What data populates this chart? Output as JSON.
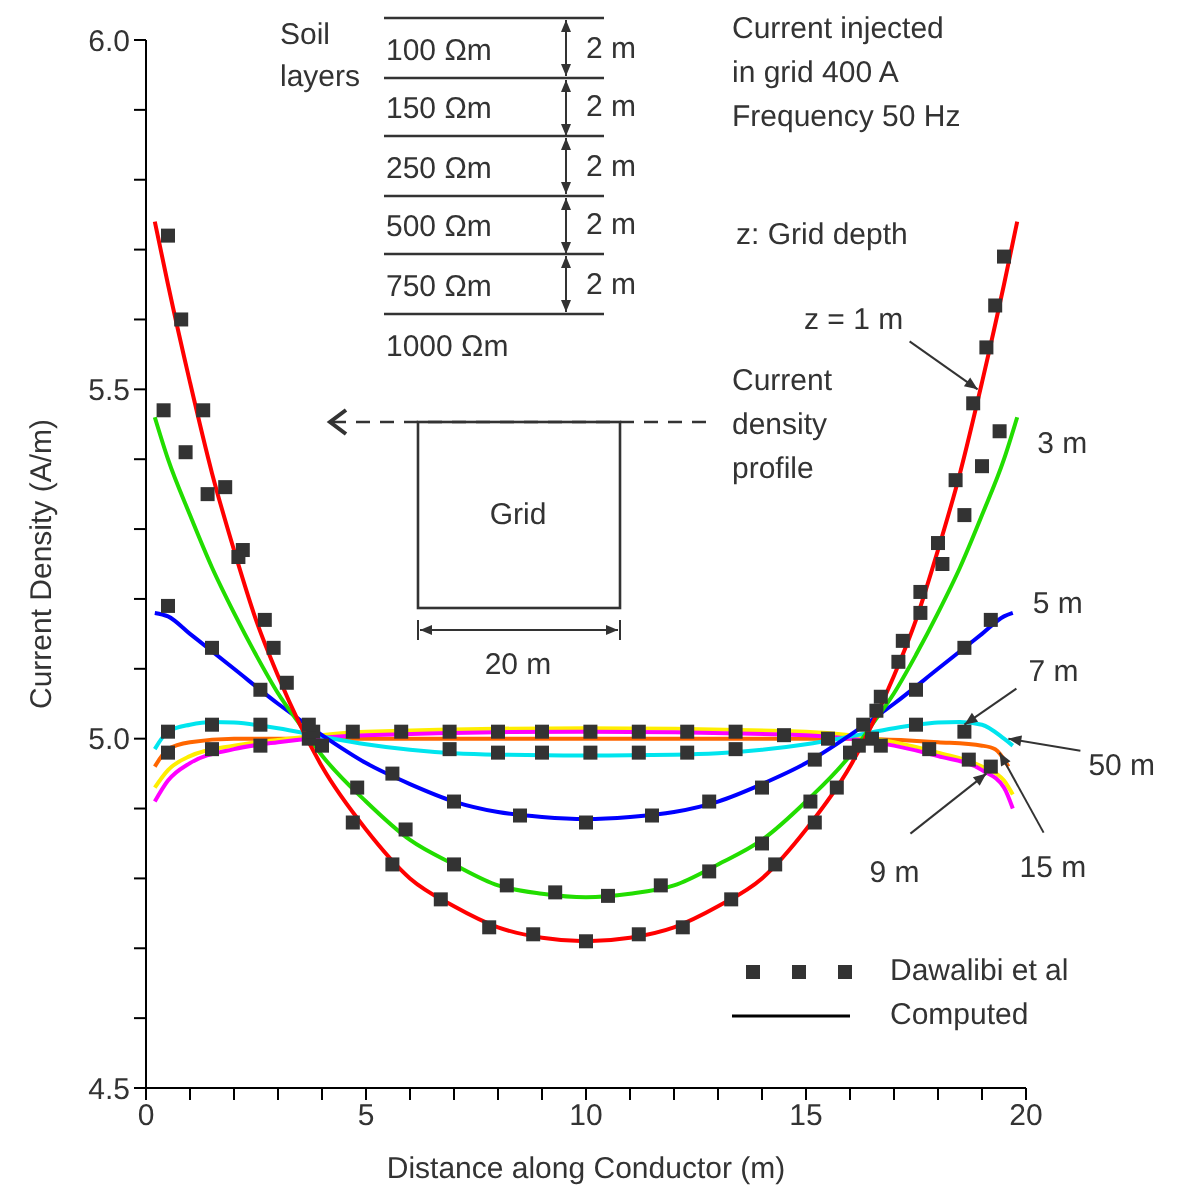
{
  "chart_data": {
    "type": "line",
    "xlabel": "Distance along Conductor (m)",
    "ylabel": "Current Density (A/m)",
    "xlim": [
      0,
      20
    ],
    "xticks": [
      0,
      {
        "value": 1,
        "label": null
      },
      {
        "value": 2,
        "label": null
      },
      {
        "value": 3,
        "label": null
      },
      {
        "value": 4,
        "label": null
      },
      5,
      {
        "value": 6,
        "label": null
      },
      {
        "value": 7,
        "label": null
      },
      {
        "value": 8,
        "label": null
      },
      {
        "value": 9,
        "label": null
      },
      10,
      {
        "value": 11,
        "label": null
      },
      {
        "value": 12,
        "label": null
      },
      {
        "value": 13,
        "label": null
      },
      {
        "value": 14,
        "label": null
      },
      15,
      {
        "value": 16,
        "label": null
      },
      {
        "value": 17,
        "label": null
      },
      {
        "value": 18,
        "label": null
      },
      {
        "value": 19,
        "label": null
      },
      20
    ],
    "ylim": [
      4.5,
      6.0
    ],
    "yticks": [
      4.5,
      {
        "value": 4.6,
        "label": null
      },
      {
        "value": 4.7,
        "label": null
      },
      {
        "value": 4.8,
        "label": null
      },
      {
        "value": 4.9,
        "label": null
      },
      {
        "value": 5,
        "label": "5.0"
      },
      {
        "value": 5.1,
        "label": null
      },
      {
        "value": 5.2,
        "label": null
      },
      {
        "value": 5.3,
        "label": null
      },
      {
        "value": 5.4,
        "label": null
      },
      5.5,
      {
        "value": 5.6,
        "label": null
      },
      {
        "value": 5.7,
        "label": null
      },
      {
        "value": 5.8,
        "label": null
      },
      {
        "value": 5.9,
        "label": null
      },
      {
        "value": 6,
        "label": "6.0"
      }
    ],
    "legend": "bottom right",
    "line_style": "solid",
    "series": [
      {
        "color": "#ff6600",
        "x": [
          0.2,
          0.5,
          1,
          2,
          4,
          10,
          16,
          18,
          19,
          19.3,
          19.6
        ],
        "values": [
          4.96,
          4.985,
          4.995,
          5.0,
          5.0,
          5.0,
          5.0,
          4.995,
          4.99,
          4.985,
          4.96
        ]
      },
      {
        "color": "#ffee00",
        "x": [
          0.2,
          0.5,
          1,
          2,
          3,
          5,
          10,
          15,
          17,
          18,
          19,
          19.5,
          19.7
        ],
        "values": [
          4.93,
          4.955,
          4.975,
          4.99,
          4.998,
          5.01,
          5.015,
          5.01,
          4.995,
          4.98,
          4.96,
          4.94,
          4.92
        ]
      },
      {
        "color": "#ff00ff",
        "x": [
          0.2,
          0.5,
          1,
          2,
          3,
          5,
          10,
          15,
          17,
          18,
          19,
          19.5,
          19.7
        ],
        "values": [
          4.91,
          4.94,
          4.965,
          4.985,
          4.995,
          5.005,
          5.01,
          5.005,
          4.99,
          4.975,
          4.955,
          4.93,
          4.9
        ]
      },
      {
        "color": "#00e5ee",
        "x": [
          0.2,
          0.5,
          1,
          1.5,
          2,
          3,
          4,
          5,
          6,
          7,
          8,
          10,
          12,
          13,
          14,
          15,
          16,
          17,
          18,
          18.5,
          19,
          19.5,
          19.7
        ],
        "values": [
          4.985,
          5.01,
          5.02,
          5.024,
          5.023,
          5.015,
          5.003,
          4.992,
          4.984,
          4.979,
          4.977,
          4.976,
          4.977,
          4.979,
          4.984,
          4.992,
          5.003,
          5.015,
          5.023,
          5.024,
          5.02,
          5.0,
          4.99
        ]
      },
      {
        "color": "#0000ff",
        "x": [
          0.2,
          0.5,
          1,
          2,
          3,
          4,
          5,
          6,
          7,
          8,
          9,
          10,
          11,
          12,
          13,
          14,
          15,
          16,
          17,
          18,
          19,
          19.5,
          19.7
        ],
        "values": [
          5.18,
          5.175,
          5.15,
          5.1,
          5.05,
          5.005,
          4.965,
          4.935,
          4.91,
          4.895,
          4.888,
          4.885,
          4.888,
          4.895,
          4.91,
          4.935,
          4.965,
          5.005,
          5.05,
          5.1,
          5.15,
          5.175,
          5.18
        ]
      },
      {
        "color": "#22dd00",
        "x": [
          0.2,
          0.5,
          1,
          1.5,
          2,
          2.5,
          3,
          3.5,
          4,
          5,
          6,
          7,
          8,
          9,
          10,
          11,
          12,
          13,
          14,
          15,
          16,
          16.5,
          17,
          17.5,
          18,
          18.5,
          19,
          19.5,
          19.8
        ],
        "values": [
          5.46,
          5.4,
          5.32,
          5.245,
          5.18,
          5.12,
          5.065,
          5.02,
          4.976,
          4.91,
          4.855,
          4.82,
          4.79,
          4.778,
          4.773,
          4.778,
          4.79,
          4.82,
          4.855,
          4.91,
          4.976,
          5.02,
          5.065,
          5.12,
          5.18,
          5.245,
          5.32,
          5.4,
          5.46
        ]
      },
      {
        "color": "#ff0000",
        "x": [
          0.2,
          0.5,
          1,
          1.5,
          2,
          2.5,
          3,
          3.5,
          4,
          5,
          6,
          7,
          8,
          9,
          10,
          11,
          12,
          13,
          14,
          15,
          16,
          16.5,
          17,
          17.5,
          18,
          18.5,
          19,
          19.5,
          19.8
        ],
        "values": [
          5.74,
          5.65,
          5.51,
          5.38,
          5.27,
          5.17,
          5.09,
          5.02,
          4.96,
          4.87,
          4.8,
          4.76,
          4.73,
          4.715,
          4.71,
          4.715,
          4.73,
          4.76,
          4.8,
          4.87,
          4.96,
          5.02,
          5.09,
          5.17,
          5.27,
          5.38,
          5.51,
          5.65,
          5.74
        ]
      },
      {
        "name": "Dawalibi et al",
        "type": "scatter",
        "marker": "square",
        "color": "#333333",
        "x": [
          0.5,
          0.8,
          1.3,
          1.8,
          2.2,
          2.7,
          3.2,
          3.7,
          4.7,
          5.6,
          6.7,
          7.8,
          8.8,
          10.0,
          11.2,
          12.2,
          13.3,
          14.3,
          15.2,
          15.7,
          16.2,
          16.7,
          17.2,
          17.6,
          18.0,
          18.4,
          18.8,
          19.1,
          19.3,
          19.5,
          0.4,
          0.9,
          1.4,
          2.1,
          2.9,
          3.8,
          4.8,
          5.9,
          7.0,
          8.2,
          9.3,
          10.5,
          11.7,
          12.8,
          14.0,
          15.1,
          16.0,
          16.6,
          17.1,
          17.6,
          18.1,
          18.6,
          19.0,
          19.4,
          0.5,
          1.5,
          2.6,
          3.7,
          5.6,
          7.0,
          8.5,
          10.0,
          11.5,
          12.8,
          14.0,
          15.2,
          16.3,
          17.5,
          18.6,
          19.2,
          0.5,
          1.5,
          2.6,
          4.7,
          5.8,
          6.9,
          8.0,
          9.0,
          10.1,
          11.2,
          12.3,
          13.4,
          14.5,
          15.5,
          16.5,
          17.5,
          18.6,
          0.5,
          1.5,
          2.6,
          4.0,
          6.9,
          8.0,
          9.0,
          10.1,
          11.2,
          12.3,
          13.4,
          16.7,
          17.8,
          18.7,
          19.2
        ],
        "values": [
          5.72,
          5.6,
          5.47,
          5.36,
          5.27,
          5.17,
          5.08,
          5.0,
          4.88,
          4.82,
          4.77,
          4.73,
          4.72,
          4.71,
          4.72,
          4.73,
          4.77,
          4.82,
          4.88,
          4.93,
          4.99,
          5.06,
          5.14,
          5.21,
          5.28,
          5.37,
          5.48,
          5.56,
          5.62,
          5.69,
          5.47,
          5.41,
          5.35,
          5.26,
          5.13,
          5.01,
          4.93,
          4.87,
          4.82,
          4.79,
          4.78,
          4.775,
          4.79,
          4.81,
          4.85,
          4.91,
          4.98,
          5.04,
          5.11,
          5.18,
          5.25,
          5.32,
          5.39,
          5.44,
          5.19,
          5.13,
          5.07,
          5.02,
          4.95,
          4.91,
          4.89,
          4.88,
          4.89,
          4.91,
          4.93,
          4.97,
          5.02,
          5.07,
          5.13,
          5.17,
          5.01,
          5.02,
          5.02,
          5.01,
          5.01,
          5.01,
          5.01,
          5.01,
          5.01,
          5.01,
          5.01,
          5.01,
          5.005,
          5.0,
          5.0,
          5.02,
          5.01,
          4.98,
          4.985,
          4.99,
          4.99,
          4.985,
          4.98,
          4.98,
          4.98,
          4.98,
          4.98,
          4.985,
          4.99,
          4.985,
          4.97,
          4.96
        ]
      }
    ],
    "annotations": [
      {
        "text": "z = 1 m",
        "x": 18.9,
        "y": 5.5
      },
      {
        "text": "3 m",
        "x": 19.8,
        "y": 5.46
      },
      {
        "text": "5 m",
        "x": 19.7,
        "y": 5.18
      },
      {
        "text": "7 m",
        "x": 18.6,
        "y": 5.02
      },
      {
        "text": "50 m",
        "x": 19.6,
        "y": 5.0
      },
      {
        "text": "15 m",
        "x": 19.4,
        "y": 4.98
      },
      {
        "text": "9 m",
        "x": 19.1,
        "y": 4.95
      },
      "Soil",
      "layers",
      "100 Ωm",
      "150 Ωm",
      "250 Ωm",
      "500 Ωm",
      "750 Ωm",
      "1000 Ωm",
      "2 m",
      "2 m",
      "2 m",
      "2 m",
      "2 m",
      "Current injected",
      "in grid 400 A",
      "Frequency 50 Hz",
      "z: Grid depth",
      "Current",
      "density",
      "profile",
      "Grid",
      "20 m",
      "Computed"
    ]
  }
}
